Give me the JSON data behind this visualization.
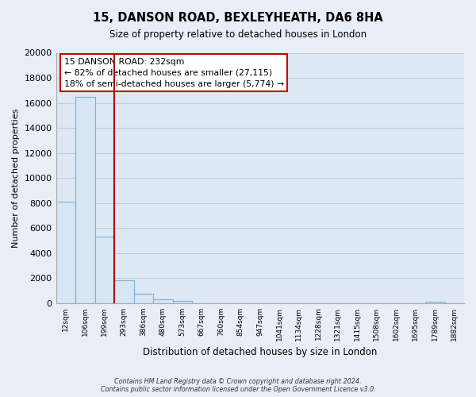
{
  "title": "15, DANSON ROAD, BEXLEYHEATH, DA6 8HA",
  "subtitle": "Size of property relative to detached houses in London",
  "xlabel": "Distribution of detached houses by size in London",
  "ylabel": "Number of detached properties",
  "bar_labels": [
    "12sqm",
    "106sqm",
    "199sqm",
    "293sqm",
    "386sqm",
    "480sqm",
    "573sqm",
    "667sqm",
    "760sqm",
    "854sqm",
    "947sqm",
    "1041sqm",
    "1134sqm",
    "1228sqm",
    "1321sqm",
    "1415sqm",
    "1508sqm",
    "1602sqm",
    "1695sqm",
    "1789sqm",
    "1882sqm"
  ],
  "bar_values": [
    8100,
    16500,
    5300,
    1850,
    750,
    280,
    200,
    0,
    0,
    0,
    0,
    0,
    0,
    0,
    0,
    0,
    0,
    0,
    0,
    100,
    0
  ],
  "bar_fill_color": "#d6e6f5",
  "bar_edge_color": "#7bafd4",
  "vline_x": 2.5,
  "vline_color": "#aa0000",
  "annotation_text": "15 DANSON ROAD: 232sqm\n← 82% of detached houses are smaller (27,115)\n18% of semi-detached houses are larger (5,774) →",
  "annotation_box_color": "#ffffff",
  "annotation_box_edgecolor": "#cc0000",
  "ylim": [
    0,
    20000
  ],
  "yticks": [
    0,
    2000,
    4000,
    6000,
    8000,
    10000,
    12000,
    14000,
    16000,
    18000,
    20000
  ],
  "footer": "Contains HM Land Registry data © Crown copyright and database right 2024.\nContains public sector information licensed under the Open Government Licence v3.0.",
  "background_color": "#e8eef6",
  "plot_background_color": "#dde8f4",
  "grid_color": "#b8cce0"
}
